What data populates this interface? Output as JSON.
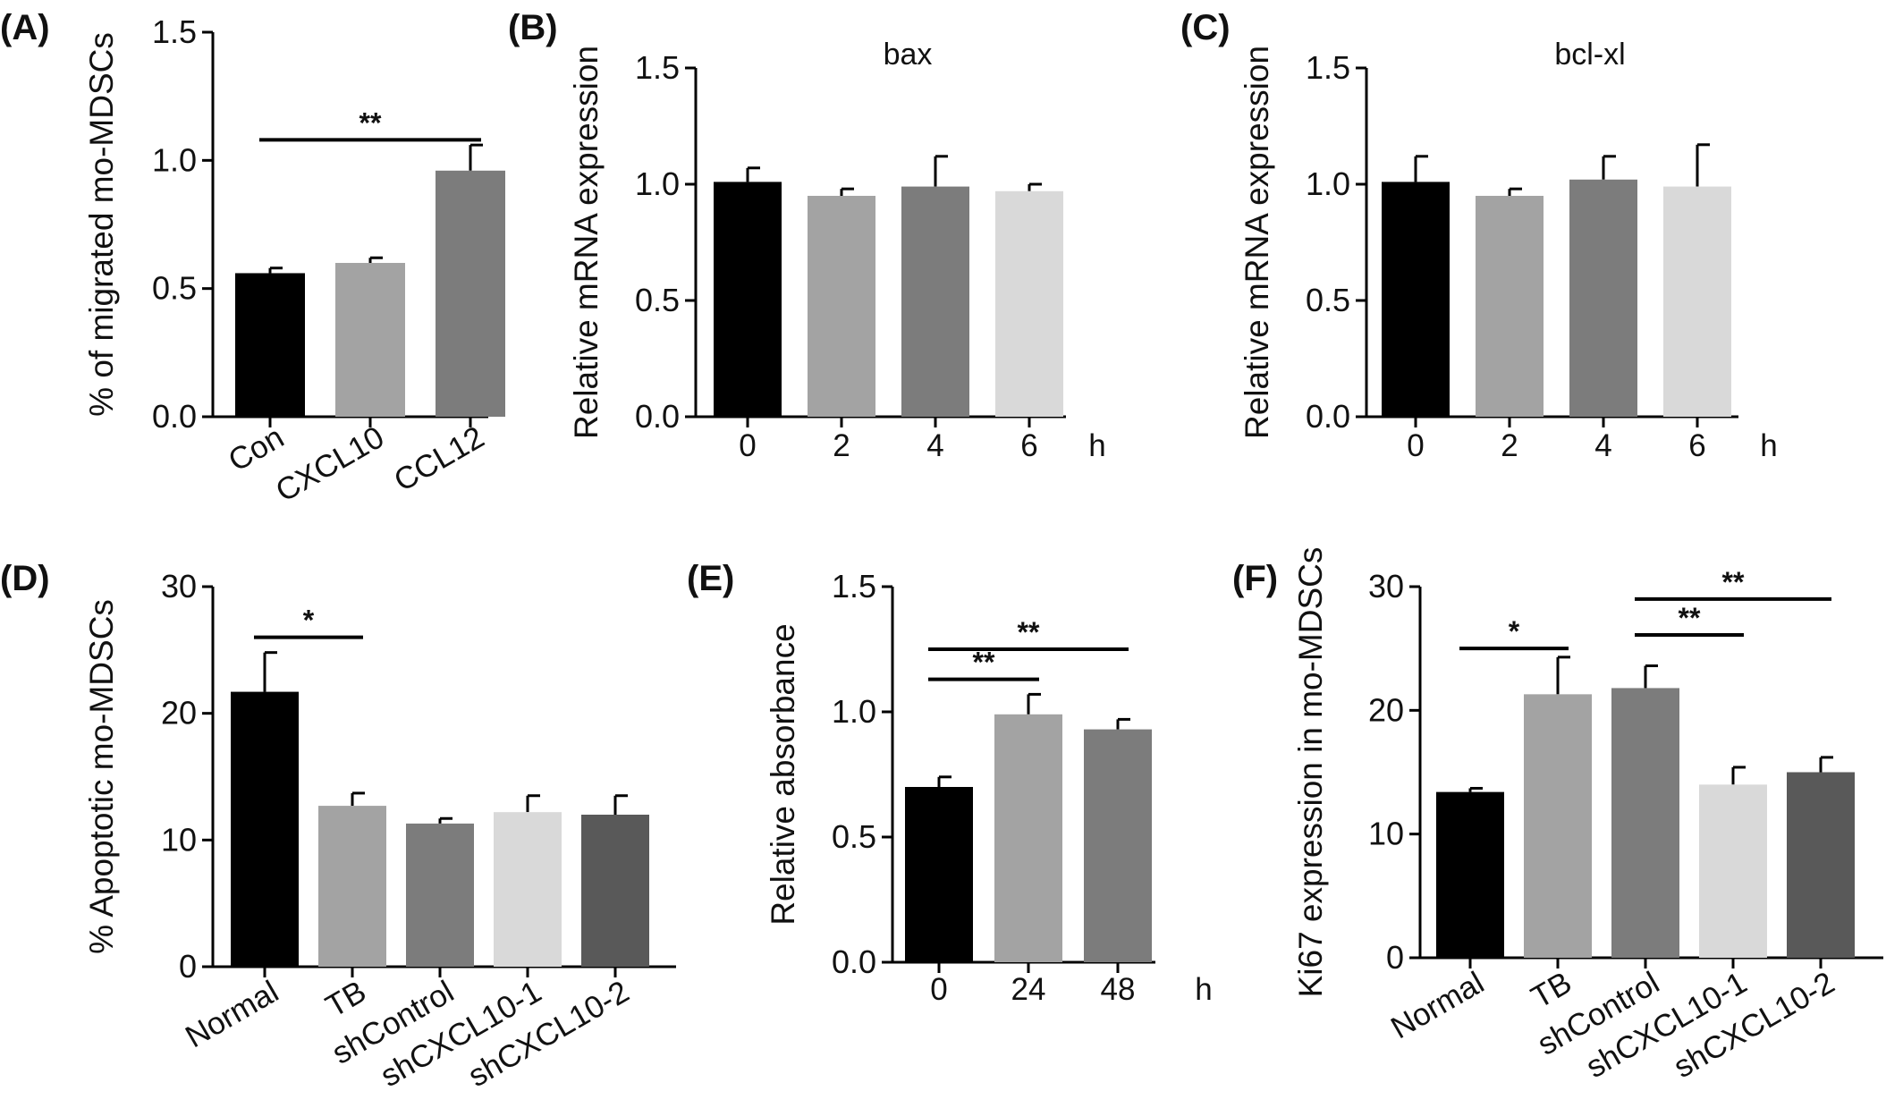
{
  "chart_data": [
    {
      "panel": "(A)",
      "type": "bar",
      "title": "",
      "ylabel": "% of migrated mo-MDSCs",
      "xlabel": "",
      "x_unit": "",
      "categories": [
        "Con",
        "CXCL10",
        "CCL12"
      ],
      "values": [
        0.56,
        0.6,
        0.96
      ],
      "errors": [
        0.02,
        0.02,
        0.1
      ],
      "colors": [
        "#000000",
        "#a3a3a3",
        "#7c7c7c"
      ],
      "ylim": [
        0,
        1.5
      ],
      "yticks": [
        "0.0",
        "0.5",
        "1.0",
        "1.5"
      ],
      "rotate_labels": true,
      "significance": [
        {
          "from": 0,
          "to": 2,
          "label": "**",
          "y": 1.08
        }
      ]
    },
    {
      "panel": "(B)",
      "type": "bar",
      "title": "bax",
      "ylabel": "Relative mRNA expression",
      "xlabel": "",
      "x_unit": "h",
      "categories": [
        "0",
        "2",
        "4",
        "6"
      ],
      "values": [
        1.01,
        0.95,
        0.99,
        0.97
      ],
      "errors": [
        0.06,
        0.03,
        0.13,
        0.03
      ],
      "colors": [
        "#000000",
        "#a3a3a3",
        "#7c7c7c",
        "#d9d9d9"
      ],
      "ylim": [
        0,
        1.5
      ],
      "yticks": [
        "0.0",
        "0.5",
        "1.0",
        "1.5"
      ],
      "rotate_labels": false,
      "significance": []
    },
    {
      "panel": "(C)",
      "type": "bar",
      "title": "bcl-xl",
      "ylabel": "Relative mRNA expression",
      "xlabel": "",
      "x_unit": "h",
      "categories": [
        "0",
        "2",
        "4",
        "6"
      ],
      "values": [
        1.01,
        0.95,
        1.02,
        0.99
      ],
      "errors": [
        0.11,
        0.03,
        0.1,
        0.18
      ],
      "colors": [
        "#000000",
        "#a3a3a3",
        "#7c7c7c",
        "#d9d9d9"
      ],
      "ylim": [
        0,
        1.5
      ],
      "yticks": [
        "0.0",
        "0.5",
        "1.0",
        "1.5"
      ],
      "rotate_labels": false,
      "significance": []
    },
    {
      "panel": "(D)",
      "type": "bar",
      "title": "",
      "ylabel": "% Apoptotic mo-MDSCs",
      "xlabel": "",
      "x_unit": "",
      "categories": [
        "Normal",
        "TB",
        "shControl",
        "shCXCL10-1",
        "shCXCL10-2"
      ],
      "values": [
        21.7,
        12.7,
        11.3,
        12.2,
        12.0
      ],
      "errors": [
        3.1,
        1.0,
        0.4,
        1.3,
        1.5
      ],
      "colors": [
        "#000000",
        "#a3a3a3",
        "#7c7c7c",
        "#d9d9d9",
        "#595959"
      ],
      "ylim": [
        0,
        30
      ],
      "yticks": [
        "0",
        "10",
        "20",
        "30"
      ],
      "rotate_labels": true,
      "significance": [
        {
          "from": 0,
          "to": 1,
          "label": "*",
          "y": 26.0
        }
      ]
    },
    {
      "panel": "(E)",
      "type": "bar",
      "title": "",
      "ylabel": "Relative absorbance",
      "xlabel": "",
      "x_unit": "h",
      "categories": [
        "0",
        "24",
        "48"
      ],
      "values": [
        0.7,
        0.99,
        0.93
      ],
      "errors": [
        0.04,
        0.08,
        0.04
      ],
      "colors": [
        "#000000",
        "#a3a3a3",
        "#7c7c7c"
      ],
      "ylim": [
        0,
        1.5
      ],
      "yticks": [
        "0.0",
        "0.5",
        "1.0",
        "1.5"
      ],
      "rotate_labels": false,
      "significance": [
        {
          "from": 0,
          "to": 1,
          "label": "**",
          "y": 1.13
        },
        {
          "from": 0,
          "to": 2,
          "label": "**",
          "y": 1.25
        }
      ]
    },
    {
      "panel": "(F)",
      "type": "bar",
      "title": "",
      "ylabel": "Ki67 expression in mo-MDSCs",
      "xlabel": "",
      "x_unit": "",
      "categories": [
        "Normal",
        "TB",
        "shControl",
        "shCXCL10-1",
        "shCXCL10-2"
      ],
      "values": [
        13.4,
        21.3,
        21.8,
        14.0,
        15.0
      ],
      "errors": [
        0.3,
        3.0,
        1.8,
        1.4,
        1.2
      ],
      "colors": [
        "#000000",
        "#a3a3a3",
        "#7c7c7c",
        "#d9d9d9",
        "#595959"
      ],
      "ylim": [
        0,
        30
      ],
      "yticks": [
        "0",
        "10",
        "20",
        "30"
      ],
      "rotate_labels": true,
      "significance": [
        {
          "from": 0,
          "to": 1,
          "label": "*",
          "y": 25.0
        },
        {
          "from": 2,
          "to": 3,
          "label": "**",
          "y": 26.1
        },
        {
          "from": 2,
          "to": 4,
          "label": "**",
          "y": 29.0
        }
      ]
    }
  ]
}
